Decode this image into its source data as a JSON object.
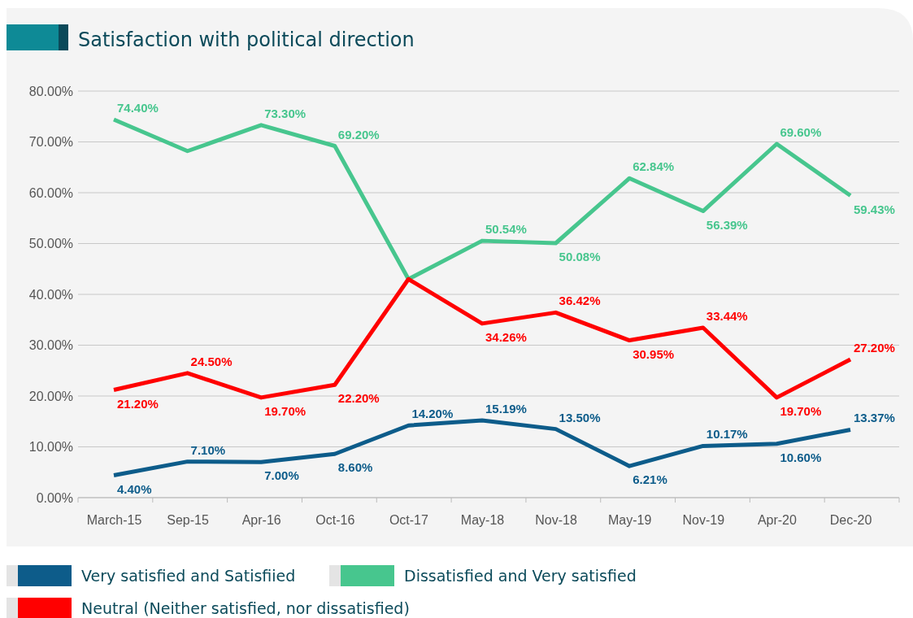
{
  "chart_data": {
    "type": "line",
    "title": "Satisfaction with political direction",
    "categories": [
      "March-15",
      "Sep-15",
      "Apr-16",
      "Oct-16",
      "Oct-17",
      "May-18",
      "Nov-18",
      "May-19",
      "Nov-19",
      "Apr-20",
      "Dec-20"
    ],
    "series": [
      {
        "name": "Very satisfied and Satisfiied",
        "color": "#0d5c8a",
        "values": [
          4.4,
          7.1,
          7.0,
          8.6,
          14.2,
          15.19,
          13.5,
          6.21,
          10.17,
          10.6,
          13.37
        ],
        "value_labels": [
          "4.40%",
          "7.10%",
          "7.00%",
          "8.60%",
          "14.20%",
          "15.19%",
          "13.50%",
          "6.21%",
          "10.17%",
          "10.60%",
          "13.37%"
        ]
      },
      {
        "name": "Dissatisfied and Very satisfied",
        "color": "#47c68e",
        "values": [
          74.4,
          68.2,
          73.3,
          69.2,
          43.0,
          50.54,
          50.08,
          62.84,
          56.39,
          69.6,
          59.43
        ],
        "value_labels": [
          "74.40%",
          null,
          "73.30%",
          "69.20%",
          null,
          "50.54%",
          "50.08%",
          "62.84%",
          "56.39%",
          "69.60%",
          "59.43%"
        ]
      },
      {
        "name": "Neutral (Neither satisfied, nor dissatisfied)",
        "color": "#ff0000",
        "values": [
          21.2,
          24.5,
          19.7,
          22.2,
          43.0,
          34.26,
          36.42,
          30.95,
          33.44,
          19.7,
          27.2
        ],
        "value_labels": [
          "21.20%",
          "24.50%",
          "19.70%",
          "22.20%",
          null,
          "34.26%",
          "36.42%",
          "30.95%",
          "33.44%",
          "19.70%",
          "27.20%"
        ]
      }
    ],
    "ylim": [
      0,
      80
    ],
    "yticks": [
      {
        "value": 0,
        "label": "0.00%"
      },
      {
        "value": 10,
        "label": "10.00%"
      },
      {
        "value": 20,
        "label": "20.00%"
      },
      {
        "value": 30,
        "label": "30.00%"
      },
      {
        "value": 40,
        "label": "40.00%"
      },
      {
        "value": 50,
        "label": "50.00%"
      },
      {
        "value": 60,
        "label": "60.00%"
      },
      {
        "value": 70,
        "label": "70.00%"
      },
      {
        "value": 80,
        "label": "80.00%"
      }
    ],
    "grid": "y",
    "legend": "bottom",
    "marker": "none",
    "line_style": "solid"
  }
}
